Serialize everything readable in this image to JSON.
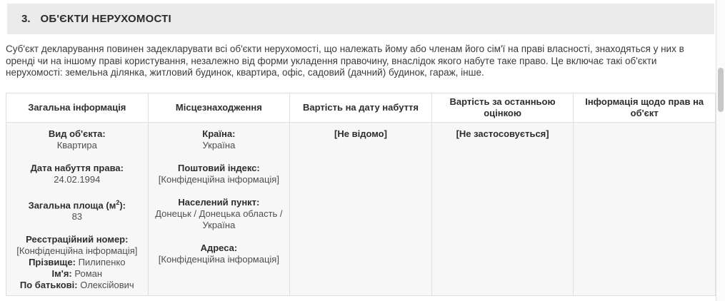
{
  "colors": {
    "titlebar_background": "#ebebeb",
    "table_header_background": "#ffffff",
    "table_body_background": "#f7f7f7",
    "table_border": "#e0e0e0",
    "text_primary": "#2e2e2e",
    "text_secondary": "#4f4f4f",
    "scrollbar_thumb": "#c7c7c7"
  },
  "section_header": {
    "number": "3.",
    "title": "ОБ'ЄКТИ НЕРУХОМОСТІ"
  },
  "intro_paragraph": "Суб'єкт декларування повинен задекларувати всі об'єкти нерухомості, що належать йому або членам його сім'ї на праві власності, знаходяться у них в оренді чи на іншому праві користування, незалежно від форми укладення правочину, внаслідок якого набуте таке право. Це включає такі об'єкти нерухомості: земельна ділянка, житловий будинок, квартира, офіс, садовий (дачний) будинок, гараж, інше.",
  "table": {
    "headers": [
      "Загальна інформація",
      "Місцезнаходження",
      "Вартість на дату набуття",
      "Вартість за останньою оцінкою",
      "Інформація щодо прав на об'єкт"
    ],
    "row": {
      "general": {
        "fields": [
          {
            "label": "Вид об'єкта:",
            "value": "Квартира"
          },
          {
            "label": "Дата набуття права:",
            "value": "24.02.1994"
          },
          {
            "label_pre": "Загальна площа (м",
            "label_sup": "2",
            "label_post": "):",
            "value": "83"
          },
          {
            "label": "Реєстраційний номер:",
            "value": "[Конфіденційна інформація]"
          }
        ],
        "person": [
          {
            "label": "Прізвище:",
            "value": "Пилипенко"
          },
          {
            "label": "Ім'я:",
            "value": "Роман"
          },
          {
            "label": "По батькові:",
            "value": "Олексійович"
          }
        ]
      },
      "location": {
        "fields": [
          {
            "label": "Країна:",
            "value": "Україна"
          },
          {
            "label": "Поштовий індекс:",
            "value": "[Конфіденційна інформація]"
          },
          {
            "label": "Населений пункт:",
            "value": "Донецьк / Донецька область / Україна"
          },
          {
            "label": "Адреса:",
            "value": "[Конфіденційна інформація]"
          }
        ]
      },
      "value_at_acquisition": "[Не відомо]",
      "value_last_appraisal": "[Не застосовується]",
      "rights_info": ""
    }
  }
}
